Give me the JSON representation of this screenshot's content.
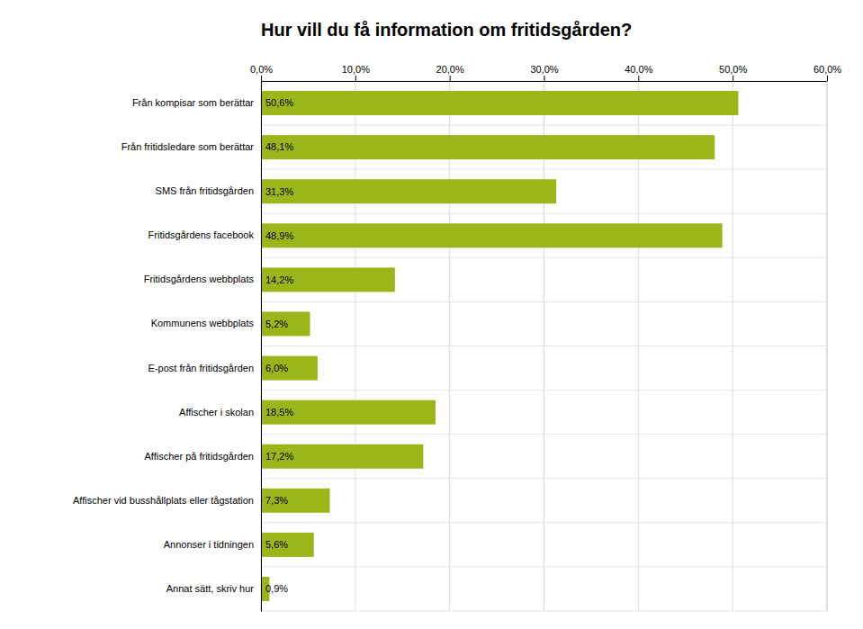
{
  "chart_data": {
    "type": "bar",
    "orientation": "horizontal",
    "title": "Hur vill du få information om fritidsgården?",
    "categories": [
      "Från kompisar som berättar",
      "Från fritidsledare som berättar",
      "SMS från fritidsgården",
      "Fritidsgårdens facebook",
      "Fritidsgårdens webbplats",
      "Kommunens webbplats",
      "E-post från fritidsgården",
      "Affischer i skolan",
      "Affischer på fritidsgården",
      "Affischer vid busshållplats eller tågstation",
      "Annonser i tidningen",
      "Annat sätt, skriv hur"
    ],
    "values": [
      50.6,
      48.1,
      31.3,
      48.9,
      14.2,
      5.2,
      6.0,
      18.5,
      17.2,
      7.3,
      5.6,
      0.9
    ],
    "value_labels": [
      "50,6%",
      "48,1%",
      "31,3%",
      "48,9%",
      "14,2%",
      "5,2%",
      "6,0%",
      "18,5%",
      "17,2%",
      "7,3%",
      "5,6%",
      "0,9%"
    ],
    "data_labels": true,
    "color": "#9AB61B",
    "xlim": [
      0,
      60
    ],
    "xticks": [
      {
        "value": 0,
        "label": "0,0%"
      },
      {
        "value": 10,
        "label": "10,0%"
      },
      {
        "value": 20,
        "label": "20,0%"
      },
      {
        "value": 30,
        "label": "30,0%"
      },
      {
        "value": 40,
        "label": "40,0%"
      },
      {
        "value": 50,
        "label": "50,0%"
      },
      {
        "value": 60,
        "label": "60,0%"
      }
    ],
    "grid": true
  }
}
